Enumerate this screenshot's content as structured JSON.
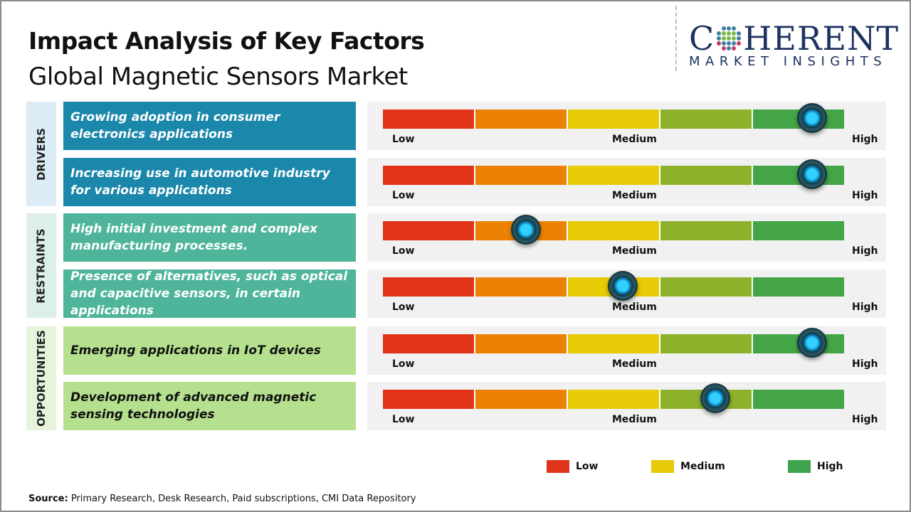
{
  "header": {
    "title": "Impact Analysis of Key Factors",
    "subtitle": "Global Magnetic Sensors Market"
  },
  "logo": {
    "main_1": "C",
    "main_2": "HERENT",
    "sub": "MARKET INSIGHTS"
  },
  "scale": {
    "low": "Low",
    "medium": "Medium",
    "high": "High"
  },
  "segment_colors": [
    "#e03319",
    "#ec8205",
    "#e6cb06",
    "#8eb12b",
    "#44a546"
  ],
  "categories": [
    {
      "label": "DRIVERS",
      "bg": "#dcecf6",
      "box": "#1b87ab",
      "text": "#ffffff"
    },
    {
      "label": "RESTRAINTS",
      "bg": "#dcefea",
      "box": "#4eb59b",
      "text": "#ffffff"
    },
    {
      "label": "OPPORTUNITIES",
      "bg": "#e6f4dc",
      "box": "#b5e08e",
      "text": "#111111"
    }
  ],
  "factors": [
    {
      "category": 0,
      "text": "Growing adoption in consumer electronics applications",
      "impact": 0.93
    },
    {
      "category": 0,
      "text": "Increasing use in automotive industry for various applications",
      "impact": 0.93
    },
    {
      "category": 1,
      "text": "High initial investment and complex manufacturing processes.",
      "impact": 0.31
    },
    {
      "category": 1,
      "text": "Presence of alternatives, such as optical and capacitive sensors, in certain applications",
      "impact": 0.52
    },
    {
      "category": 2,
      "text": "Emerging applications in IoT devices",
      "impact": 0.93
    },
    {
      "category": 2,
      "text": "Development of advanced magnetic sensing technologies",
      "impact": 0.72
    }
  ],
  "legend": [
    {
      "label": "Low",
      "color": "#e03319"
    },
    {
      "label": "Medium",
      "color": "#e6cb06"
    },
    {
      "label": "High",
      "color": "#3fa34d"
    }
  ],
  "source": {
    "label": "Source:",
    "text": " Primary Research, Desk Research, Paid subscriptions, CMI Data Repository"
  }
}
